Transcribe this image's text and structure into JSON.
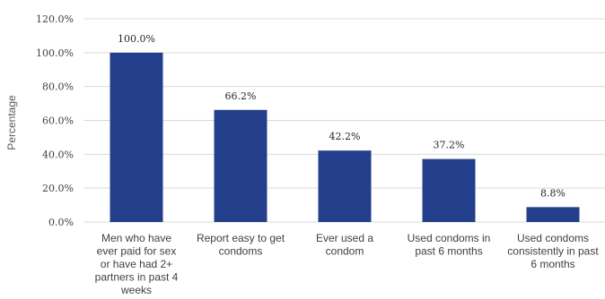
{
  "chart_data": {
    "type": "bar",
    "categories": [
      [
        "Men who have",
        "ever paid for sex",
        "or have had 2+",
        "partners in past 4",
        "weeks"
      ],
      [
        "Report easy to get",
        "condoms"
      ],
      [
        "Ever used a",
        "condom"
      ],
      [
        "Used condoms in",
        "past 6 months"
      ],
      [
        "Used condoms",
        "consistently  in past",
        "6 months"
      ]
    ],
    "values": [
      100.0,
      66.2,
      42.2,
      37.2,
      8.8
    ],
    "data_labels": [
      "100.0%",
      "66.2%",
      "42.2%",
      "37.2%",
      "8.8%"
    ],
    "title": "",
    "xlabel": "",
    "ylabel": "Percentage",
    "ylim": [
      0,
      120
    ],
    "yticks": [
      0,
      20,
      40,
      60,
      80,
      100,
      120
    ],
    "ytick_labels": [
      "0.0%",
      "20.0%",
      "40.0%",
      "60.0%",
      "80.0%",
      "100.0%",
      "120.0%"
    ],
    "grid": true,
    "bar_color": "#233F8B",
    "grid_color": "#D9D9D9"
  }
}
